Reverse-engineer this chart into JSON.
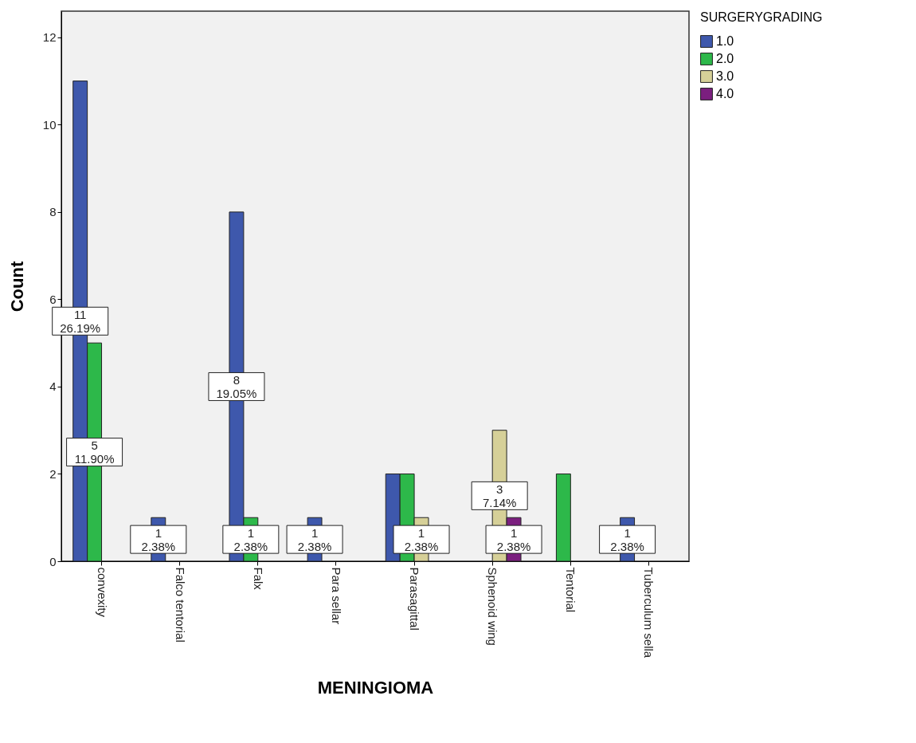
{
  "chart_data": {
    "type": "bar",
    "categories": [
      "convexity",
      "Falco tentorial",
      "Falx",
      "Para sellar",
      "Parasagittal",
      "Sphenoid wing",
      "Tentorial",
      "Tuberculum sella"
    ],
    "series": [
      {
        "name": "1.0",
        "color": "#3e58ac",
        "values": [
          11,
          1,
          8,
          1,
          2,
          null,
          null,
          1
        ],
        "value_labels": [
          "11\n26.19%",
          "1\n2.38%",
          "8\n19.05%",
          "1\n2.38%",
          null,
          null,
          null,
          "1\n2.38%"
        ]
      },
      {
        "name": "2.0",
        "color": "#2db84a",
        "values": [
          5,
          null,
          1,
          null,
          2,
          null,
          2,
          null
        ],
        "value_labels": [
          "5\n11.90%",
          null,
          "1\n2.38%",
          null,
          null,
          null,
          null,
          null
        ]
      },
      {
        "name": "3.0",
        "color": "#d6d098",
        "values": [
          null,
          null,
          null,
          null,
          1,
          3,
          null,
          null
        ],
        "value_labels": [
          null,
          null,
          null,
          null,
          "1\n2.38%",
          "3\n7.14%",
          null,
          null
        ]
      },
      {
        "name": "4.0",
        "color": "#7b1f7f",
        "values": [
          null,
          null,
          null,
          null,
          null,
          1,
          null,
          null
        ],
        "value_labels": [
          null,
          null,
          null,
          null,
          null,
          "1\n2.38%",
          null,
          null
        ]
      }
    ],
    "xlabel": "MENINGIOMA",
    "ylabel": "Count",
    "legend_title": "SURGERYGRADING",
    "legend": "top right",
    "grid": false,
    "ylim": [
      0,
      12.6
    ],
    "yticks": [
      0,
      2,
      4,
      6,
      8,
      10,
      12
    ]
  }
}
